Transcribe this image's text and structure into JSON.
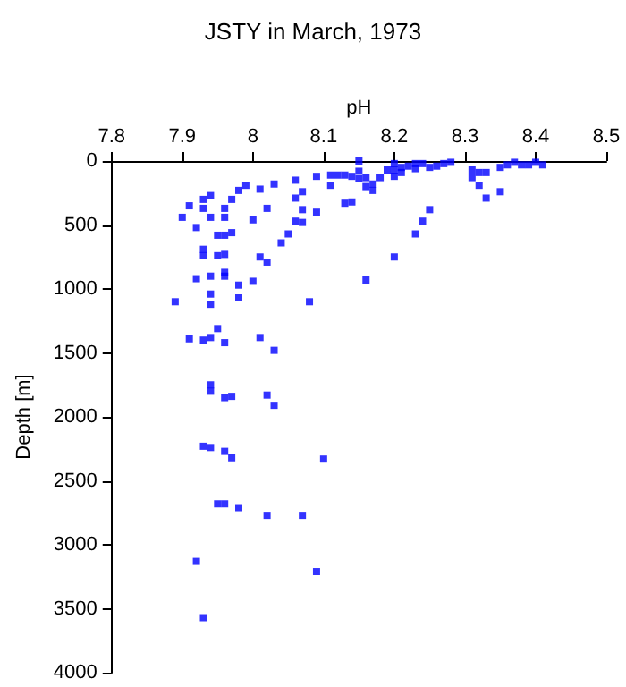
{
  "chart_data": {
    "type": "scatter",
    "title": "JSTY in March, 1973",
    "xlabel": "pH",
    "ylabel": "Depth [m]",
    "xlim": [
      7.8,
      8.5
    ],
    "xticks": [
      7.8,
      7.9,
      8,
      8.1,
      8.2,
      8.3,
      8.4,
      8.5
    ],
    "ylim": [
      4000,
      0
    ],
    "yticks": [
      0,
      500,
      1000,
      1500,
      2000,
      2500,
      3000,
      3500,
      4000
    ],
    "grid": false,
    "marker": "square",
    "series": [
      {
        "color": "#0000ff",
        "x": [
          8.15,
          8.15,
          8.15,
          8.11,
          8.12,
          8.13,
          8.14,
          8.09,
          8.11,
          8.16,
          8.16,
          8.17,
          8.17,
          8.18,
          8.19,
          8.2,
          8.2,
          8.2,
          8.21,
          8.21,
          8.22,
          8.23,
          8.23,
          8.24,
          8.25,
          8.26,
          8.27,
          8.28,
          8.31,
          8.31,
          8.32,
          8.32,
          8.33,
          8.33,
          8.35,
          8.35,
          8.36,
          8.37,
          8.38,
          8.39,
          8.4,
          8.41,
          8.14,
          8.13,
          8.06,
          8.07,
          8.06,
          8.03,
          8.01,
          7.99,
          7.98,
          7.97,
          7.94,
          7.93,
          7.91,
          7.9,
          7.92,
          7.93,
          7.94,
          7.96,
          7.96,
          7.95,
          7.96,
          7.97,
          8.0,
          8.02,
          8.06,
          8.07,
          8.07,
          8.09,
          8.05,
          8.04,
          8.01,
          8.02,
          7.93,
          7.93,
          7.95,
          7.96,
          7.96,
          7.96,
          7.94,
          7.92,
          7.98,
          8.0,
          7.94,
          7.94,
          7.98,
          7.89,
          8.08,
          8.16,
          8.2,
          8.23,
          8.24,
          8.25,
          7.91,
          7.93,
          7.94,
          7.95,
          7.96,
          8.01,
          8.03,
          7.94,
          7.94,
          7.96,
          7.97,
          8.02,
          8.03,
          7.93,
          7.94,
          7.96,
          7.97,
          8.1,
          7.95,
          7.96,
          7.98,
          8.02,
          8.07,
          7.92,
          8.09,
          7.93
        ],
        "values": [
          0,
          80,
          140,
          110,
          110,
          110,
          120,
          120,
          190,
          130,
          200,
          180,
          230,
          130,
          70,
          20,
          70,
          120,
          50,
          90,
          40,
          20,
          60,
          20,
          50,
          40,
          20,
          10,
          70,
          130,
          90,
          190,
          90,
          290,
          50,
          240,
          30,
          10,
          30,
          30,
          10,
          30,
          320,
          330,
          150,
          240,
          290,
          180,
          220,
          190,
          230,
          300,
          270,
          300,
          350,
          440,
          520,
          370,
          440,
          370,
          440,
          580,
          580,
          560,
          460,
          370,
          470,
          380,
          480,
          400,
          570,
          640,
          750,
          790,
          690,
          740,
          740,
          730,
          870,
          900,
          900,
          920,
          970,
          940,
          1040,
          1120,
          1070,
          1100,
          1100,
          930,
          750,
          570,
          470,
          380,
          1390,
          1400,
          1380,
          1310,
          1420,
          1380,
          1480,
          1750,
          1800,
          1850,
          1840,
          1830,
          1910,
          2230,
          2240,
          2270,
          2320,
          2330,
          2680,
          2680,
          2710,
          2770,
          2770,
          3130,
          3210,
          3570
        ]
      }
    ]
  }
}
